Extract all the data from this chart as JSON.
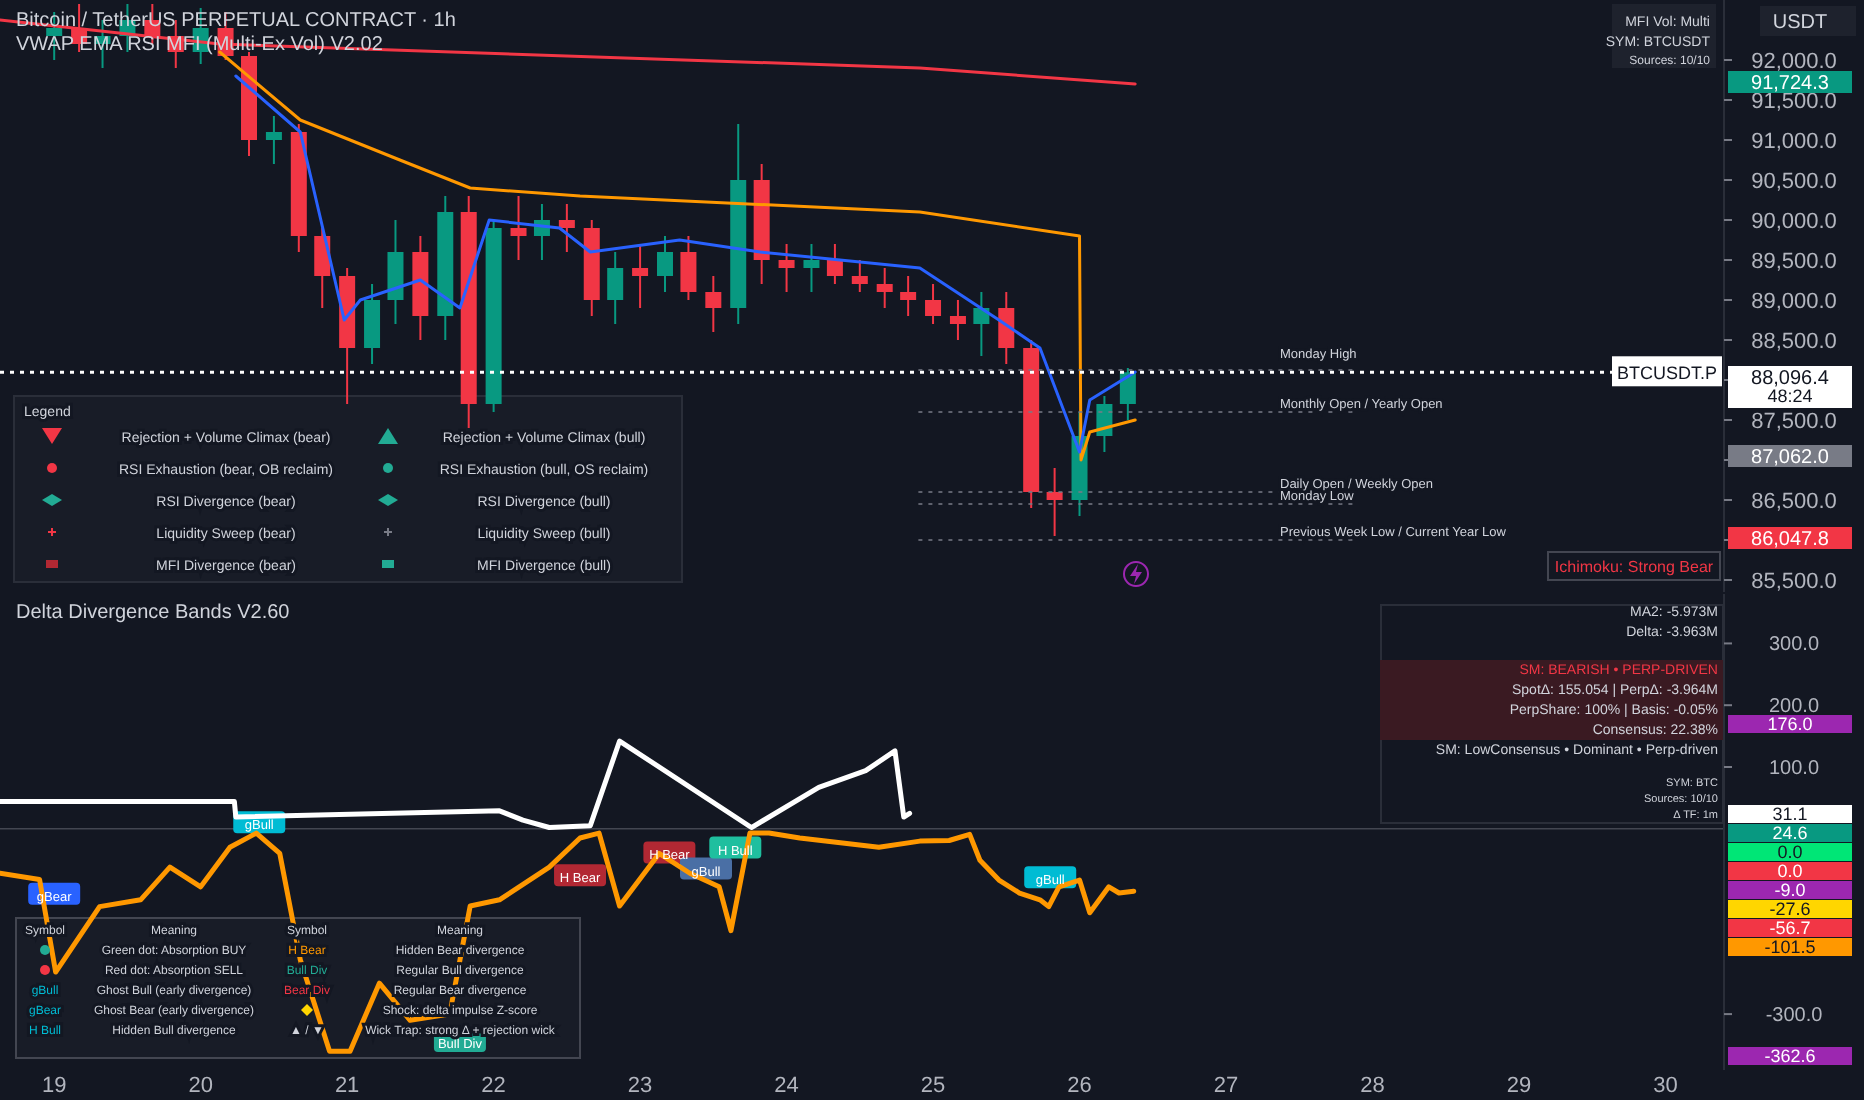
{
  "chart_data": [
    {
      "type": "candlestick",
      "title": "Bitcoin / TetherUS PERPETUAL CONTRACT · 1h",
      "subtitle": "VWAP EMA RSI MFI (Multi-Ex Vol) V2.02",
      "x": [
        19.0,
        19.17,
        19.33,
        19.5,
        19.67,
        19.83,
        20.0,
        20.17,
        20.33,
        20.5,
        20.67,
        20.83,
        21.0,
        21.17,
        21.33,
        21.5,
        21.67,
        21.83,
        22.0,
        22.17,
        22.33,
        22.5,
        22.67,
        22.83,
        23.0,
        23.17,
        23.33,
        23.5,
        23.67,
        23.83,
        24.0,
        24.17,
        24.33,
        24.5,
        24.67,
        24.83,
        25.0,
        25.17,
        25.33,
        25.5,
        25.67,
        25.83,
        26.0,
        26.17,
        26.33
      ],
      "ohlc": [
        [
          92300,
          92600,
          92000,
          92400
        ],
        [
          92400,
          92700,
          92100,
          92200
        ],
        [
          92200,
          92500,
          91900,
          92300
        ],
        [
          92300,
          92700,
          92100,
          92500
        ],
        [
          92500,
          92700,
          92200,
          92300
        ],
        [
          92300,
          92500,
          91900,
          92100
        ],
        [
          92100,
          92650,
          91950,
          92400
        ],
        [
          92400,
          92600,
          92000,
          92050
        ],
        [
          92050,
          92100,
          90800,
          91000
        ],
        [
          91000,
          91300,
          90700,
          91100
        ],
        [
          91100,
          91200,
          89600,
          89800
        ],
        [
          89800,
          89900,
          88900,
          89300
        ],
        [
          89300,
          89400,
          87700,
          88400
        ],
        [
          88400,
          89200,
          88200,
          89000
        ],
        [
          89000,
          90000,
          88700,
          89600
        ],
        [
          89600,
          89800,
          88500,
          88800
        ],
        [
          88800,
          90300,
          88500,
          90100
        ],
        [
          90100,
          90300,
          87400,
          87700
        ],
        [
          87700,
          90000,
          87600,
          89900
        ],
        [
          89900,
          90300,
          89500,
          89800
        ],
        [
          89800,
          90200,
          89500,
          90000
        ],
        [
          90000,
          90200,
          89600,
          89900
        ],
        [
          89900,
          90000,
          88800,
          89000
        ],
        [
          89000,
          89600,
          88700,
          89400
        ],
        [
          89400,
          89700,
          88900,
          89300
        ],
        [
          89300,
          89800,
          89100,
          89600
        ],
        [
          89600,
          89800,
          89000,
          89100
        ],
        [
          89100,
          89300,
          88600,
          88900
        ],
        [
          88900,
          91200,
          88700,
          90500
        ],
        [
          90500,
          90700,
          89200,
          89500
        ],
        [
          89500,
          89700,
          89100,
          89400
        ],
        [
          89400,
          89700,
          89100,
          89500
        ],
        [
          89500,
          89700,
          89200,
          89300
        ],
        [
          89300,
          89500,
          89100,
          89200
        ],
        [
          89200,
          89400,
          88900,
          89100
        ],
        [
          89100,
          89300,
          88800,
          89000
        ],
        [
          89000,
          89200,
          88700,
          88800
        ],
        [
          88800,
          89000,
          88500,
          88700
        ],
        [
          88700,
          89100,
          88300,
          88900
        ],
        [
          88900,
          89100,
          88200,
          88400
        ],
        [
          88400,
          88500,
          86400,
          86600
        ],
        [
          86600,
          86900,
          86050,
          86500
        ],
        [
          86500,
          87600,
          86300,
          87300
        ],
        [
          87300,
          87800,
          87100,
          87700
        ],
        [
          87700,
          88150,
          87500,
          88096.4
        ]
      ],
      "series": [
        {
          "type": "line",
          "color": "#f23645",
          "x": [
            18.63,
            20.13,
            24.91,
            26.38
          ],
          "values": [
            92500,
            92200,
            91900,
            91700
          ]
        },
        {
          "type": "line",
          "color": "#ff9800",
          "x": [
            20.13,
            20.68,
            21.36,
            21.84,
            22.59,
            24.91,
            26.0,
            26.01,
            26.07,
            26.38
          ],
          "values": [
            92100,
            91250,
            90750,
            90400,
            90300,
            90100,
            89800,
            87000,
            87350,
            87500
          ]
        },
        {
          "type": "line",
          "color": "#2962ff",
          "x": [
            20.24,
            20.68,
            20.98,
            21.09,
            21.5,
            21.77,
            21.97,
            22.45,
            22.66,
            23.27,
            23.82,
            24.91,
            25.45,
            25.73,
            26.0,
            26.07,
            26.38
          ],
          "values": [
            91800,
            91100,
            88750,
            89000,
            89250,
            88900,
            90000,
            89900,
            89600,
            89750,
            89600,
            89400,
            88750,
            88400,
            87100,
            87750,
            88100
          ]
        }
      ],
      "xlim": [
        18.63,
        30.4
      ],
      "ylim": [
        85375,
        92750
      ],
      "yticks": [
        {
          "value": 85500,
          "label": "85,500.0"
        },
        {
          "value": 86000,
          "label": null
        },
        {
          "value": 86500,
          "label": "86,500.0"
        },
        {
          "value": 87000,
          "label": null
        },
        {
          "value": 87500,
          "label": "87,500.0"
        },
        {
          "value": 88000,
          "label": null
        },
        {
          "value": 88500,
          "label": "88,500.0"
        },
        {
          "value": 89000,
          "label": "89,000.0"
        },
        {
          "value": 89500,
          "label": "89,500.0"
        },
        {
          "value": 90000,
          "label": "90,000.0"
        },
        {
          "value": 90500,
          "label": "90,500.0"
        },
        {
          "value": 91000,
          "label": "91,000.0"
        },
        {
          "value": 91500,
          "label": "91,500.0"
        },
        {
          "value": 92000,
          "label": "92,000.0"
        }
      ],
      "tick_labels": "y",
      "ref_lines": [
        {
          "axis": "y",
          "value": 88096.4,
          "label": "BTCUSDT.P",
          "color": "#ffffff",
          "line_style": "dotted"
        },
        {
          "axis": "y",
          "value": 88125,
          "label": "Monday High",
          "color": "#787b86",
          "line_style": "dotted"
        },
        {
          "axis": "y",
          "value": 87600,
          "label": "Monthly Open / Yearly Open",
          "color": "#787b86",
          "line_style": "dotted"
        },
        {
          "axis": "y",
          "value": 86600,
          "label": "Daily Open / Weekly Open",
          "color": "#787b86",
          "line_style": "dotted"
        },
        {
          "axis": "y",
          "value": 86450,
          "label": "Monday Low",
          "color": "#787b86",
          "line_style": "dotted"
        },
        {
          "axis": "y",
          "value": 86000,
          "label": "Previous Week Low / Current Year Low",
          "color": "#787b86",
          "line_style": "dotted"
        }
      ],
      "annotations": [
        "Legend",
        "Rejection + Volume Climax (bear)",
        "Rejection + Volume Climax (bull)",
        "RSI Exhaustion (bear, OB reclaim)",
        "RSI Exhaustion (bull, OS reclaim)",
        "RSI Divergence (bear)",
        "RSI Divergence (bull)",
        "Liquidity Sweep (bear)",
        "Liquidity Sweep (bull)",
        "MFI Divergence (bear)",
        "MFI Divergence (bull)",
        "MFI Vol: Multi",
        "SYM: BTCUSDT",
        "Sources: 10/10",
        "USDT",
        "Ichimoku: Strong Bear",
        "48:24",
        "91,724.3",
        "88,096.4",
        "87,062.0",
        "86,047.8"
      ]
    },
    {
      "type": "line",
      "title": "Delta Divergence Bands V2.60",
      "series": [
        {
          "type": "line",
          "color": "#ffffff",
          "x": [
            18.63,
            20.23,
            20.24,
            22.04,
            22.2,
            22.38,
            22.66,
            22.86,
            23.76,
            24.22,
            24.54,
            24.74,
            24.8,
            24.84
          ],
          "values": [
            44,
            44,
            19,
            29,
            14,
            2,
            5,
            142,
            2,
            67,
            94,
            126,
            19,
            25
          ]
        },
        {
          "type": "line",
          "color": "#ff9800",
          "x": [
            18.63,
            18.9,
            19.01,
            19.31,
            19.59,
            19.79,
            20.0,
            20.2,
            20.38,
            20.54,
            20.68,
            20.88,
            21.02,
            21.22,
            21.43,
            21.7,
            21.84,
            22.04,
            22.38,
            22.59,
            22.72,
            22.86,
            23.13,
            23.34,
            23.54,
            23.62,
            23.75,
            23.88,
            24.09,
            24.63,
            24.91,
            25.11,
            25.25,
            25.32,
            25.45,
            25.59,
            25.73,
            25.79,
            25.86,
            26.0,
            26.07,
            26.2,
            26.27,
            26.37
          ],
          "values": [
            -72,
            -82,
            -232,
            -126,
            -115,
            -62,
            -94,
            -30,
            -7,
            -40,
            -212,
            -360,
            -360,
            -250,
            -310,
            -300,
            -125,
            -115,
            -62,
            -15,
            -7,
            -125,
            -40,
            -72,
            -94,
            -165,
            -7,
            -7,
            -15,
            -30,
            -20,
            -19,
            -9,
            -51,
            -83,
            -104,
            -115,
            -126,
            -94,
            -83,
            -136,
            -94,
            -104,
            -101
          ]
        }
      ],
      "xlim": [
        18.63,
        30.4
      ],
      "xticks": [
        19,
        20,
        21,
        22,
        23,
        24,
        25,
        26,
        27,
        28,
        29,
        30
      ],
      "ylim": [
        -384,
        380
      ],
      "yticks": [
        {
          "value": 300,
          "label": "300.0"
        },
        {
          "value": 200,
          "label": "200.0"
        },
        {
          "value": 100,
          "label": "100.0"
        },
        {
          "value": -300,
          "label": "-300.0"
        }
      ],
      "ref_lines": [
        {
          "axis": "y",
          "value": 0,
          "color": "#434651",
          "line_style": "solid"
        }
      ],
      "annotations": [
        {
          "text": "gBear",
          "x": 19.0,
          "y": -107
        },
        {
          "text": "gBull",
          "x": 20.4,
          "y": 9
        },
        {
          "text": "H Bear",
          "x": 22.59,
          "y": -77
        },
        {
          "text": "H Bear",
          "x": 23.2,
          "y": -40
        },
        {
          "text": "gBull",
          "x": 23.45,
          "y": -66
        },
        {
          "text": "H Bull",
          "x": 23.65,
          "y": -32
        },
        {
          "text": "gBull",
          "x": 25.8,
          "y": -80
        },
        {
          "text": "Bull Div",
          "x": 21.77,
          "y": -345
        },
        "Symbol",
        "Meaning",
        "Symbol",
        "Meaning",
        "Green dot: Absorption BUY",
        "H Bear",
        "Hidden Bear divergence",
        "Red dot: Absorption SELL",
        "Bull Div",
        "Regular Bull divergence",
        "gBull",
        "Ghost Bull (early divergence)",
        "Bear Div",
        "Regular Bear divergence",
        "gBear",
        "Ghost Bear (early divergence)",
        "Shock: delta impulse Z-score",
        "H Bull",
        "Hidden Bull divergence",
        "▲ / ▼",
        "Wick Trap: strong Δ + rejection wick",
        "MA2: -5.973M",
        "Delta: -3.963M",
        "SM: BEARISH • PERP-DRIVEN",
        "SpotΔ: 155.054 | PerpΔ: -3.964M",
        "PerpShare: 100% | Basis: -0.05%",
        "Consensus: 22.38%",
        "SM: LowConsensus • Dominant • Perp-driven",
        "SYM: BTC",
        "Sources: 10/10",
        "Δ TF: 1m",
        "176.0",
        "31.1",
        "24.6",
        "0.0",
        "0.0",
        "-9.0",
        "-27.6",
        "-56.7",
        "-101.5",
        "-362.6"
      ]
    }
  ]
}
